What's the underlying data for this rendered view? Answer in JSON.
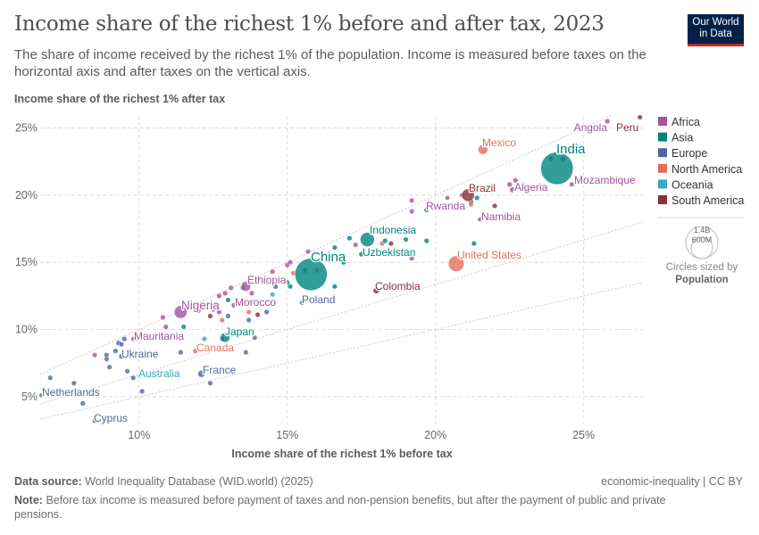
{
  "header": {
    "title": "Income share of the richest 1% before and after tax, 2023",
    "subtitle": "The share of income received by the richest 1% of the population. Income is measured before taxes on the horizontal axis and after taxes on the vertical axis.",
    "logo": "Our World in Data"
  },
  "footer": {
    "source_label": "Data source:",
    "source": "World Inequality Database (WID.world) (2025)",
    "license": "economic-inequality | CC BY",
    "note_label": "Note:",
    "note": "Before tax income is measured before payment of taxes and non-pension benefits, but after the payment of public and private pensions."
  },
  "chart_data": {
    "type": "scatter",
    "xlabel": "Income share of the richest 1% before tax",
    "ylabel": "Income share of the richest 1% after tax",
    "xlim": [
      6.66,
      27
    ],
    "ylim": [
      3.0,
      25.9
    ],
    "xticks": [
      "10%",
      "15%",
      "20%",
      "25%"
    ],
    "xtick_values": [
      10,
      15,
      20,
      25
    ],
    "yticks": [
      "5%",
      "10%",
      "15%",
      "20%",
      "25%"
    ],
    "ytick_values": [
      5,
      10,
      15,
      20,
      25
    ],
    "grid": true,
    "reference_lines": [
      1,
      0.667,
      0.5
    ],
    "legend_position": "right",
    "regions": [
      {
        "name": "Africa",
        "color": "#a2559c"
      },
      {
        "name": "Asia",
        "color": "#00847e"
      },
      {
        "name": "Europe",
        "color": "#4c6a9c"
      },
      {
        "name": "North America",
        "color": "#e56e5a"
      },
      {
        "name": "Oceania",
        "color": "#38aaba"
      },
      {
        "name": "South America",
        "color": "#883039"
      }
    ],
    "size_legend": {
      "title": "Circles sized by",
      "variable": "Population",
      "labels": [
        "1.4B",
        "600M"
      ],
      "values": [
        1400,
        600
      ]
    },
    "labeled_points": [
      {
        "name": "Angola",
        "region": "Africa",
        "x": 25.8,
        "y": 25.5,
        "pop": 36
      },
      {
        "name": "Peru",
        "region": "South America",
        "x": 26.9,
        "y": 25.8,
        "pop": 34
      },
      {
        "name": "Mexico",
        "region": "North America",
        "x": 21.6,
        "y": 23.4,
        "pop": 128
      },
      {
        "name": "India",
        "region": "Asia",
        "x": 24.1,
        "y": 22.0,
        "pop": 1428
      },
      {
        "name": "Mozambique",
        "region": "Africa",
        "x": 24.6,
        "y": 20.8,
        "pop": 33
      },
      {
        "name": "Algeria",
        "region": "Africa",
        "x": 22.6,
        "y": 20.4,
        "pop": 45
      },
      {
        "name": "Brazil",
        "region": "South America",
        "x": 21.1,
        "y": 20.0,
        "pop": 216
      },
      {
        "name": "Rwanda",
        "region": "Africa",
        "x": 20.4,
        "y": 19.8,
        "pop": 14
      },
      {
        "name": "Namibia",
        "region": "Africa",
        "x": 21.5,
        "y": 18.2,
        "pop": 3
      },
      {
        "name": "Indonesia",
        "region": "Asia",
        "x": 17.7,
        "y": 16.7,
        "pop": 277
      },
      {
        "name": "Uzbekistan",
        "region": "Asia",
        "x": 17.5,
        "y": 15.6,
        "pop": 35
      },
      {
        "name": "United States",
        "region": "North America",
        "x": 20.7,
        "y": 14.9,
        "pop": 335
      },
      {
        "name": "Colombia",
        "region": "South America",
        "x": 18.0,
        "y": 12.9,
        "pop": 52
      },
      {
        "name": "China",
        "region": "Asia",
        "x": 15.8,
        "y": 14.1,
        "pop": 1410
      },
      {
        "name": "Poland",
        "region": "Europe",
        "x": 15.5,
        "y": 12.0,
        "pop": 37
      },
      {
        "name": "Ethiopia",
        "region": "Africa",
        "x": 13.6,
        "y": 13.2,
        "pop": 126
      },
      {
        "name": "Morocco",
        "region": "Africa",
        "x": 13.2,
        "y": 11.8,
        "pop": 37
      },
      {
        "name": "Nigeria",
        "region": "Africa",
        "x": 11.4,
        "y": 11.3,
        "pop": 223
      },
      {
        "name": "Japan",
        "region": "Asia",
        "x": 12.9,
        "y": 9.4,
        "pop": 124
      },
      {
        "name": "Mauritania",
        "region": "Africa",
        "x": 9.8,
        "y": 9.3,
        "pop": 5
      },
      {
        "name": "Canada",
        "region": "North America",
        "x": 11.9,
        "y": 8.4,
        "pop": 39
      },
      {
        "name": "Ukraine",
        "region": "Europe",
        "x": 9.4,
        "y": 8.0,
        "pop": 37
      },
      {
        "name": "France",
        "region": "Europe",
        "x": 12.1,
        "y": 6.7,
        "pop": 68
      },
      {
        "name": "Australia",
        "region": "Oceania",
        "x": 10.0,
        "y": 6.5,
        "pop": 26
      },
      {
        "name": "Netherlands",
        "region": "Europe",
        "x": 6.7,
        "y": 5.1,
        "pop": 18
      },
      {
        "name": "Cyprus",
        "region": "Europe",
        "x": 8.5,
        "y": 3.2,
        "pop": 1
      }
    ],
    "other_points": [
      [
        7.0,
        6.4,
        "Europe"
      ],
      [
        7.8,
        6.0,
        "Europe"
      ],
      [
        8.1,
        4.5,
        "Europe"
      ],
      [
        8.5,
        8.1,
        "Africa"
      ],
      [
        8.9,
        8.1,
        "Europe"
      ],
      [
        8.9,
        7.8,
        "Europe"
      ],
      [
        9.0,
        7.2,
        "Europe"
      ],
      [
        9.2,
        8.4,
        "Europe"
      ],
      [
        9.3,
        9.0,
        "Europe"
      ],
      [
        9.4,
        8.9,
        "Europe"
      ],
      [
        9.5,
        9.3,
        "Europe"
      ],
      [
        9.6,
        6.9,
        "Europe"
      ],
      [
        9.8,
        6.4,
        "Europe"
      ],
      [
        9.9,
        9.3,
        "Europe"
      ],
      [
        10.1,
        5.4,
        "Europe"
      ],
      [
        10.8,
        10.9,
        "Africa"
      ],
      [
        10.9,
        10.2,
        "Africa"
      ],
      [
        11.4,
        8.3,
        "Europe"
      ],
      [
        11.5,
        10.2,
        "Asia"
      ],
      [
        12.0,
        11.4,
        "Africa"
      ],
      [
        12.2,
        9.3,
        "Oceania"
      ],
      [
        12.4,
        11.0,
        "South America"
      ],
      [
        12.4,
        6.0,
        "Europe"
      ],
      [
        12.5,
        11.5,
        "Europe"
      ],
      [
        12.7,
        11.3,
        "Africa"
      ],
      [
        12.7,
        12.5,
        "Africa"
      ],
      [
        12.8,
        10.7,
        "North America"
      ],
      [
        12.9,
        12.7,
        "Africa"
      ],
      [
        13.0,
        12.2,
        "Asia"
      ],
      [
        13.0,
        11.0,
        "Europe"
      ],
      [
        13.1,
        13.1,
        "Africa"
      ],
      [
        13.5,
        13.1,
        "Asia"
      ],
      [
        13.7,
        10.7,
        "Europe"
      ],
      [
        13.7,
        11.3,
        "North America"
      ],
      [
        13.8,
        12.7,
        "Africa"
      ],
      [
        13.9,
        9.4,
        "Europe"
      ],
      [
        13.6,
        8.3,
        "Europe"
      ],
      [
        14.0,
        11.1,
        "South America"
      ],
      [
        14.3,
        13.5,
        "Africa"
      ],
      [
        14.3,
        11.3,
        "Europe"
      ],
      [
        14.5,
        12.6,
        "Oceania"
      ],
      [
        14.5,
        14.3,
        "Africa"
      ],
      [
        14.6,
        13.2,
        "Asia"
      ],
      [
        14.9,
        13.5,
        "Asia"
      ],
      [
        15.0,
        13.5,
        "Asia"
      ],
      [
        15.0,
        14.8,
        "Africa"
      ],
      [
        15.1,
        13.2,
        "Asia"
      ],
      [
        15.1,
        15.0,
        "Africa"
      ],
      [
        15.2,
        14.2,
        "North America"
      ],
      [
        15.6,
        14.4,
        "Asia"
      ],
      [
        15.7,
        15.8,
        "Africa"
      ],
      [
        16.0,
        14.4,
        "Africa"
      ],
      [
        16.1,
        12.2,
        "Asia"
      ],
      [
        16.6,
        13.2,
        "Asia"
      ],
      [
        16.6,
        16.1,
        "Asia"
      ],
      [
        16.9,
        15.0,
        "Asia"
      ],
      [
        17.1,
        16.8,
        "Asia"
      ],
      [
        17.3,
        16.3,
        "Africa"
      ],
      [
        18.2,
        16.4,
        "North America"
      ],
      [
        18.3,
        16.6,
        "Asia"
      ],
      [
        18.5,
        16.4,
        "South America"
      ],
      [
        19.0,
        16.7,
        "Asia"
      ],
      [
        19.7,
        16.6,
        "Asia"
      ],
      [
        19.2,
        15.3,
        "Africa"
      ],
      [
        21.3,
        16.4,
        "Asia"
      ],
      [
        19.2,
        19.6,
        "Africa"
      ],
      [
        19.2,
        18.8,
        "Africa"
      ],
      [
        19.7,
        18.9,
        "Asia"
      ],
      [
        20.9,
        20.0,
        "Africa"
      ],
      [
        21.2,
        19.5,
        "Asia"
      ],
      [
        21.4,
        19.8,
        "Asia"
      ],
      [
        21.2,
        19.3,
        "North America"
      ],
      [
        22.0,
        19.2,
        "South America"
      ],
      [
        22.5,
        20.8,
        "Africa"
      ],
      [
        22.7,
        21.1,
        "Africa"
      ],
      [
        23.9,
        22.7,
        "Asia"
      ],
      [
        24.3,
        22.7,
        "Europe"
      ],
      [
        12.8,
        9.3,
        "Europe"
      ]
    ]
  }
}
